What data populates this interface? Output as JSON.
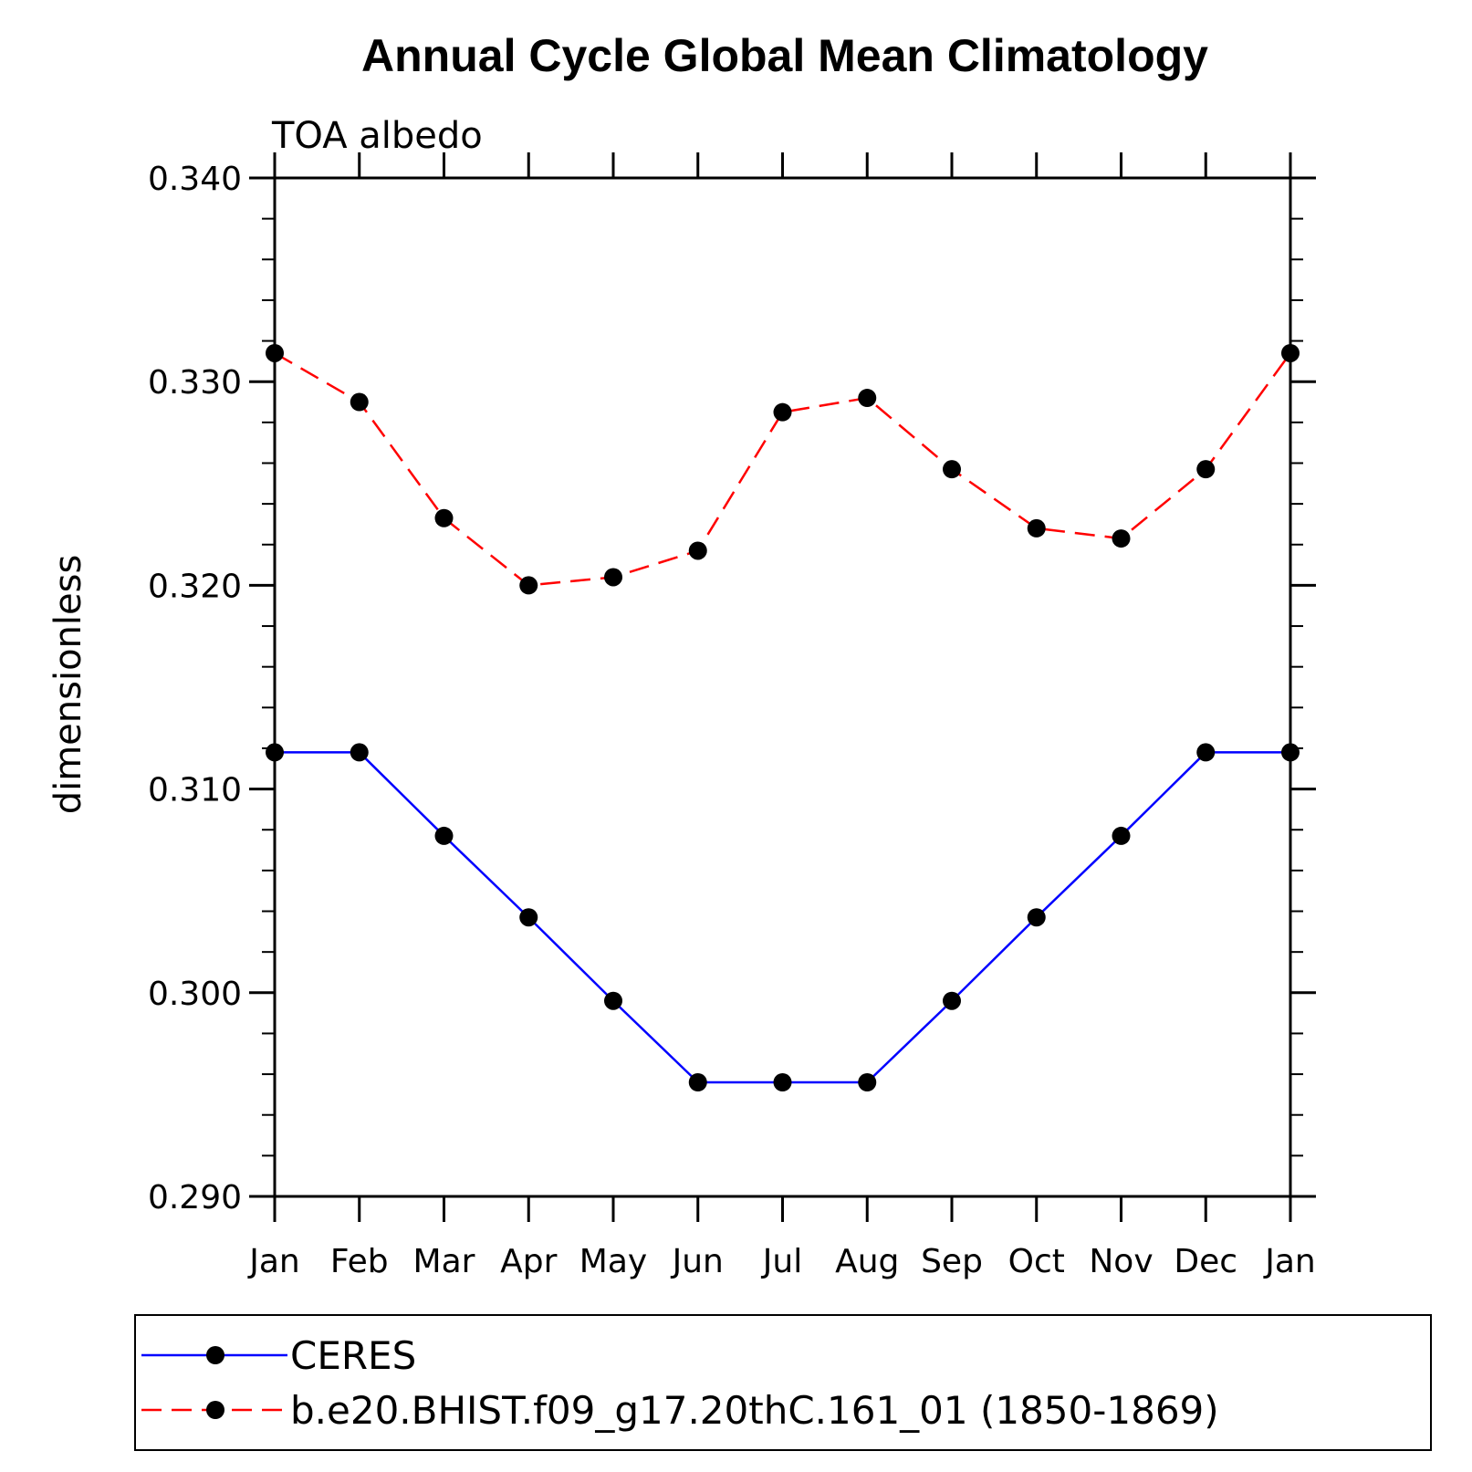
{
  "chart_data": {
    "type": "line",
    "title": "Annual Cycle Global Mean Climatology",
    "subtitle": "TOA albedo",
    "ylabel": "dimensionless",
    "xlabel": "",
    "categories": [
      "Jan",
      "Feb",
      "Mar",
      "Apr",
      "May",
      "Jun",
      "Jul",
      "Aug",
      "Sep",
      "Oct",
      "Nov",
      "Dec",
      "Jan"
    ],
    "ylim": [
      0.29,
      0.34
    ],
    "yticks": [
      "0.290",
      "0.300",
      "0.310",
      "0.320",
      "0.330",
      "0.340"
    ],
    "ytick_values": [
      0.29,
      0.3,
      0.31,
      0.32,
      0.33,
      0.34
    ],
    "grid": false,
    "legend_position": "bottom",
    "series": [
      {
        "name": "CERES",
        "color": "#0000ff",
        "dashed": false,
        "values": [
          0.3118,
          0.3118,
          0.3077,
          0.3037,
          0.2996,
          0.2956,
          0.2956,
          0.2956,
          0.2996,
          0.3037,
          0.3077,
          0.3118,
          0.3118
        ]
      },
      {
        "name": "b.e20.BHIST.f09_g17.20thC.161_01 (1850-1869)",
        "color": "#ff0000",
        "dashed": true,
        "values": [
          0.3314,
          0.329,
          0.3233,
          0.32,
          0.3204,
          0.3217,
          0.3285,
          0.3292,
          0.3257,
          0.3228,
          0.3223,
          0.3257,
          0.3314
        ]
      }
    ]
  }
}
